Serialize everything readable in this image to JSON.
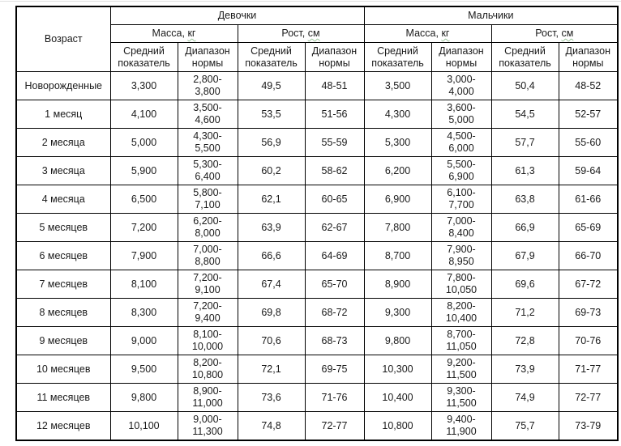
{
  "table": {
    "age_header": "Возраст",
    "groups": {
      "girls": "Девочки",
      "boys": "Мальчики"
    },
    "measures": {
      "mass": {
        "name": "Масса,",
        "unit": "кг"
      },
      "height": {
        "name": "Рост,",
        "unit": "см"
      }
    },
    "subheaders": {
      "mean": "Средний\nпоказатель",
      "range": "Диапазон\nнормы"
    },
    "rows": [
      {
        "cells": [
          "Новорожденные",
          "3,300",
          "2,800-\n3,800",
          "49,5",
          "48-51",
          "3,500",
          "3,000-\n4,000",
          "50,4",
          "48-52"
        ]
      },
      {
        "cells": [
          "1 месяц",
          "4,100",
          "3,500-\n4,600",
          "53,5",
          "51-56",
          "4,300",
          "3,600-\n5,000",
          "54,5",
          "52-57"
        ]
      },
      {
        "cells": [
          "2 месяца",
          "5,000",
          "4,300-\n5,500",
          "56,9",
          "55-59",
          "5,300",
          "4,500-\n6,000",
          "57,7",
          "55-60"
        ]
      },
      {
        "cells": [
          "3 месяца",
          "5,900",
          "5,300-\n6,400",
          "60,2",
          "58-62",
          "6,200",
          "5,500-\n6,900",
          "61,3",
          "59-64"
        ]
      },
      {
        "cells": [
          "4 месяца",
          "6,500",
          "5,800-\n7,100",
          "62,1",
          "60-65",
          "6,900",
          "6,100-\n7,700",
          "63,8",
          "61-66"
        ]
      },
      {
        "cells": [
          "5 месяцев",
          "7,200",
          "6,200-\n8,000",
          "63,9",
          "62-67",
          "7,800",
          "7,000-\n8,400",
          "66,9",
          "65-69"
        ]
      },
      {
        "cells": [
          "6 месяцев",
          "7,900",
          "7,000-\n8,800",
          "66,6",
          "64-69",
          "8,700",
          "7,900-\n8,950",
          "67,9",
          "66-70"
        ]
      },
      {
        "cells": [
          "7 месяцев",
          "8,100",
          "7,200-\n9,100",
          "67,4",
          "65-70",
          "8,900",
          "7,800-\n10,050",
          "69,6",
          "67-72"
        ]
      },
      {
        "cells": [
          "8 месяцев",
          "8,300",
          "7,200-\n9,400",
          "69,8",
          "68-72",
          "9,300",
          "8,200-\n10,400",
          "71,2",
          "69-73"
        ]
      },
      {
        "cells": [
          "9 месяцев",
          "9,000",
          "8,100-\n10,000",
          "70,6",
          "68-73",
          "9,800",
          "8,700-\n11,050",
          "72,8",
          "70-76"
        ]
      },
      {
        "cells": [
          "10 месяцев",
          "9,500",
          "8,200-\n10,800",
          "72,1",
          "69-75",
          "10,300",
          "9,200-\n11,500",
          "73,9",
          "71-77"
        ]
      },
      {
        "cells": [
          "11 месяцев",
          "9,800",
          "8,900-\n11,000",
          "73,6",
          "71-76",
          "10,400",
          "9,300-\n11,500",
          "74,9",
          "72-77"
        ]
      },
      {
        "cells": [
          "12 месяцев",
          "10,100",
          "9,000-\n11,300",
          "74,8",
          "72-77",
          "10,800",
          "9,400-\n11,900",
          "75,7",
          "73-79"
        ]
      }
    ],
    "colors": {
      "border": "#000000",
      "text": "#1a1a1a",
      "background": "#ffffff",
      "spellcheck_squiggle": "#9cc49c"
    }
  }
}
